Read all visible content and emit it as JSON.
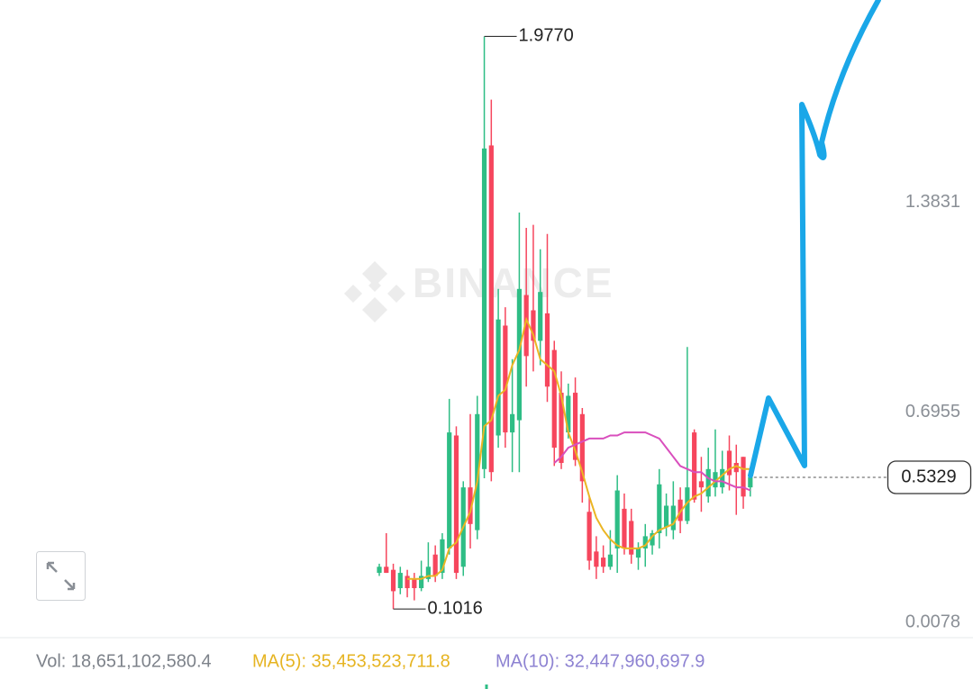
{
  "chart_data": {
    "type": "candlestick",
    "watermark": "BINANCE",
    "open": [
      0.22,
      0.24,
      0.23,
      0.17,
      0.21,
      0.2,
      0.17,
      0.2,
      0.28,
      0.22,
      0.3,
      0.67,
      0.24,
      0.5,
      0.36,
      0.56,
      1.62,
      0.67,
      1.03,
      0.68,
      0.72,
      1.13,
      1.08,
      0.98,
      1.07,
      0.95,
      0.81,
      0.68,
      0.81,
      0.74,
      0.42,
      0.29,
      0.27,
      0.24,
      0.3,
      0.43,
      0.39,
      0.27,
      0.3,
      0.31,
      0.35,
      0.37,
      0.36,
      0.46,
      0.39,
      0.68,
      0.52,
      0.47,
      0.5,
      0.5,
      0.62,
      0.58,
      0.6,
      0.5
    ],
    "high": [
      0.25,
      0.35,
      0.25,
      0.24,
      0.23,
      0.22,
      0.26,
      0.32,
      0.31,
      0.35,
      0.79,
      0.7,
      0.52,
      0.74,
      0.8,
      1.977,
      1.77,
      1.15,
      1.09,
      0.92,
      1.4,
      1.35,
      1.36,
      1.28,
      1.33,
      0.98,
      0.88,
      0.84,
      0.86,
      0.76,
      0.47,
      0.34,
      0.31,
      0.36,
      0.54,
      0.48,
      0.43,
      0.32,
      0.38,
      0.36,
      0.56,
      0.48,
      0.52,
      0.5,
      0.96,
      0.69,
      0.6,
      0.63,
      0.69,
      0.62,
      0.67,
      0.64,
      0.6,
      0.54
    ],
    "low": [
      0.21,
      0.22,
      0.1016,
      0.15,
      0.14,
      0.13,
      0.16,
      0.19,
      0.19,
      0.2,
      0.28,
      0.2,
      0.21,
      0.3,
      0.33,
      0.53,
      0.52,
      0.63,
      0.63,
      0.55,
      0.55,
      0.83,
      0.88,
      0.9,
      0.78,
      0.57,
      0.56,
      0.66,
      0.57,
      0.45,
      0.23,
      0.2,
      0.22,
      0.23,
      0.22,
      0.28,
      0.25,
      0.23,
      0.24,
      0.28,
      0.3,
      0.34,
      0.33,
      0.35,
      0.38,
      0.45,
      0.42,
      0.45,
      0.47,
      0.48,
      0.49,
      0.41,
      0.43,
      0.47
    ],
    "close": [
      0.24,
      0.22,
      0.16,
      0.22,
      0.17,
      0.17,
      0.21,
      0.24,
      0.21,
      0.33,
      0.68,
      0.22,
      0.5,
      0.38,
      0.74,
      1.61,
      0.55,
      1.05,
      0.68,
      0.74,
      1.15,
      0.93,
      0.98,
      1.14,
      0.83,
      0.63,
      0.58,
      0.8,
      0.59,
      0.52,
      0.26,
      0.24,
      0.24,
      0.28,
      0.49,
      0.3,
      0.28,
      0.3,
      0.34,
      0.35,
      0.51,
      0.44,
      0.44,
      0.39,
      0.5,
      0.46,
      0.5,
      0.56,
      0.55,
      0.56,
      0.54,
      0.55,
      0.47,
      0.5329
    ],
    "up_color": "#2ebd85",
    "down_color": "#f6465d",
    "series": [
      {
        "name": "MA(5)",
        "color": "#ebb523",
        "values": [
          null,
          null,
          null,
          null,
          0.2,
          0.2,
          0.2,
          0.21,
          0.21,
          0.23,
          0.3,
          0.32,
          0.37,
          0.42,
          0.52,
          0.7,
          0.72,
          0.8,
          0.82,
          0.9,
          0.95,
          1.05,
          1.0,
          0.92,
          0.9,
          0.88,
          0.8,
          0.68,
          0.62,
          0.55,
          0.47,
          0.4,
          0.36,
          0.33,
          0.31,
          0.3,
          0.3,
          0.3,
          0.31,
          0.34,
          0.36,
          0.37,
          0.38,
          0.42,
          0.45,
          0.47,
          0.48,
          0.5,
          0.52,
          0.54,
          0.56,
          0.57,
          0.56,
          0.56
        ]
      },
      {
        "name": "MA(10)",
        "color": "#d94fbd",
        "values": [
          null,
          null,
          null,
          null,
          null,
          null,
          null,
          null,
          null,
          null,
          null,
          null,
          null,
          null,
          null,
          null,
          null,
          null,
          null,
          null,
          null,
          null,
          null,
          null,
          null,
          0.58,
          0.6,
          0.63,
          0.64,
          0.65,
          0.66,
          0.66,
          0.66,
          0.67,
          0.67,
          0.68,
          0.68,
          0.68,
          0.68,
          0.67,
          0.66,
          0.63,
          0.6,
          0.57,
          0.56,
          0.55,
          0.55,
          0.53,
          0.52,
          0.52,
          0.51,
          0.5,
          0.5,
          0.49
        ]
      }
    ],
    "high_marker": {
      "value": 1.977,
      "label": "1.9770"
    },
    "low_marker": {
      "value": 0.1016,
      "label": "0.1016"
    },
    "last_price": {
      "value": 0.5329,
      "label": "0.5329"
    },
    "ylim": [
      0.0078,
      2.0963
    ],
    "yticks": [
      0.0078,
      0.6955,
      1.3831
    ],
    "grid": false,
    "volume": {
      "vol": "Vol: 18,651,102,580.4",
      "ma5": "MA(5): 35,453,523,711.8",
      "ma10": "MA(10): 32,447,960,697.9"
    }
  }
}
